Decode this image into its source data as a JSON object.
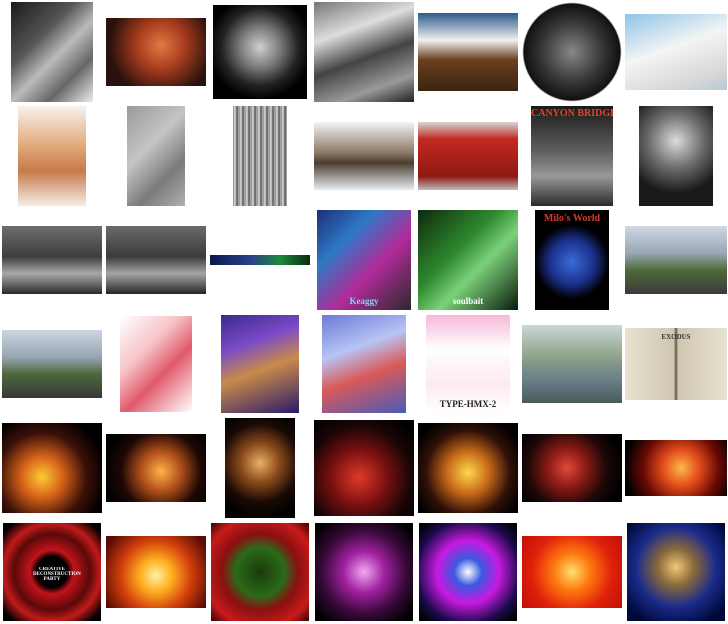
{
  "gallery": {
    "rows": [
      {
        "items": [
          {
            "name": "thumb-chest-xray",
            "w": 82,
            "h": 100,
            "bg": "linear-gradient(135deg,#1a1a1a 0%,#555 35%,#bbb 55%,#666 75%,#eee 100%)",
            "caption": "",
            "capColor": "#222"
          },
          {
            "name": "thumb-painted-face",
            "w": 100,
            "h": 68,
            "bg": "radial-gradient(circle at 55% 40%,#e07a45 0%,#a83c1e 35%,#2a120c 75%)",
            "caption": "",
            "capColor": "#fff"
          },
          {
            "name": "thumb-ct-scan",
            "w": 94,
            "h": 94,
            "bg": "radial-gradient(circle at 50% 45%,#cfcfcf 0%,#777 30%,#222 55%,#000 75%)",
            "caption": "",
            "capColor": "#fff"
          },
          {
            "name": "thumb-weather-satellite",
            "w": 100,
            "h": 100,
            "bg": "linear-gradient(160deg,#777 0%,#ddd 30%,#444 55%,#999 80%,#222 100%)",
            "caption": "",
            "capColor": "#fff"
          },
          {
            "name": "thumb-bald-eagle",
            "w": 100,
            "h": 78,
            "bg": "linear-gradient(180deg,#2d5b8a 0%,#f0f0f0 35%,#6b3f1f 60%,#3a2410 100%)",
            "caption": "",
            "capColor": "#fff"
          },
          {
            "name": "thumb-globe-satellite",
            "w": 100,
            "h": 100,
            "bg": "radial-gradient(circle,#888 0%,#333 45%,#111 68%,#ffffff 70%)",
            "caption": "",
            "capColor": "#fff"
          },
          {
            "name": "thumb-arctic-foxes",
            "w": 102,
            "h": 76,
            "bg": "linear-gradient(160deg,#8fc4e8 0%,#f4f4f4 45%,#d8d8d8 80%,#b7c9d6 100%)",
            "caption": "",
            "capColor": "#fff"
          }
        ]
      },
      {
        "items": [
          {
            "name": "thumb-holding-hands",
            "w": 68,
            "h": 100,
            "bg": "linear-gradient(180deg,#f6f2ec 0%,#e2a879 40%,#c67a4c 65%,#f4eee6 100%)",
            "caption": "",
            "capColor": "#fff"
          },
          {
            "name": "thumb-aircraft-grayscale",
            "w": 58,
            "h": 100,
            "bg": "linear-gradient(135deg,#9a9a9a 0%,#c4c4c4 40%,#7a7a7a 70%,#b0b0b0 100%)",
            "caption": "",
            "capColor": "#fff"
          },
          {
            "name": "thumb-autostereogram",
            "w": 54,
            "h": 100,
            "bg": "repeating-linear-gradient(90deg,#888 0px,#ddd 2px,#555 4px,#bbb 6px)",
            "caption": "",
            "capColor": "#fff"
          },
          {
            "name": "thumb-wolf-snow",
            "w": 100,
            "h": 68,
            "bg": "linear-gradient(180deg,#f2f4f8 0%,#8c7a66 45%,#4a3d30 60%,#e8ecf0 100%)",
            "caption": "",
            "capColor": "#fff"
          },
          {
            "name": "thumb-red-container",
            "w": 100,
            "h": 68,
            "bg": "linear-gradient(180deg,#d6d6d6 0%,#c22a22 25%,#8e1812 80%,#bdbdbd 100%)",
            "caption": "",
            "capColor": "#fff"
          },
          {
            "name": "thumb-canyon-bridge",
            "w": 82,
            "h": 100,
            "bg": "linear-gradient(180deg,#1a1a1a 0%,#5e5e5e 45%,#999 70%,#2b2b2b 100%)",
            "caption": "CANYON BRIDGE",
            "capColor": "#e8431e"
          },
          {
            "name": "thumb-graduate-portrait",
            "w": 74,
            "h": 100,
            "bg": "radial-gradient(circle at 50% 35%,#dcdcdc 0%,#707070 35%,#1a1a1a 70%)",
            "caption": "",
            "capColor": "#fff"
          }
        ]
      },
      {
        "items": [
          {
            "name": "thumb-studio-man-1",
            "w": 100,
            "h": 68,
            "bg": "linear-gradient(180deg,#6d6d6d 0%,#3e3e3e 45%,#a9a9a9 70%,#2a2a2a 100%)",
            "caption": "",
            "capColor": "#fff"
          },
          {
            "name": "thumb-studio-man-2",
            "w": 100,
            "h": 68,
            "bg": "linear-gradient(180deg,#6a6a6a 0%,#3b3b3b 45%,#a5a5a5 70%,#262626 100%)",
            "caption": "",
            "capColor": "#fff"
          },
          {
            "name": "thumb-banner-strip",
            "w": 100,
            "h": 10,
            "bg": "linear-gradient(90deg,#0a1a4a 0%,#2b3f8a 40%,#1b8a3a 70%,#0b2b12 100%)",
            "caption": "",
            "capColor": "#fff"
          },
          {
            "name": "thumb-keaggy-robot",
            "w": 94,
            "h": 100,
            "bg": "linear-gradient(135deg,#1d2f7a 0%,#2f78c4 30%,#b22a9a 60%,#2a2a2a 100%)",
            "caption": "Keaggy",
            "capColor": "#7dd4ff"
          },
          {
            "name": "thumb-soulbait-hands",
            "w": 100,
            "h": 100,
            "bg": "linear-gradient(135deg,#0d2a0d 0%,#2f8a2f 40%,#7ad17a 60%,#0a1a0a 100%)",
            "caption": "soulbait",
            "capColor": "#ffffff"
          },
          {
            "name": "thumb-milos-world",
            "w": 74,
            "h": 100,
            "bg": "radial-gradient(circle at 50% 52%,#3a6cd8 0%,#1a2f8a 35%,#000 58%)",
            "caption": "Milo's World",
            "capColor": "#d23a2a"
          },
          {
            "name": "thumb-street-bridge-1",
            "w": 102,
            "h": 68,
            "bg": "linear-gradient(180deg,#cfd8e4 0%,#9aa6b4 40%,#4e6a3a 65%,#3a3a3a 100%)",
            "caption": "",
            "capColor": "#fff"
          }
        ]
      },
      {
        "items": [
          {
            "name": "thumb-street-bridge-2",
            "w": 100,
            "h": 68,
            "bg": "linear-gradient(180deg,#ccd6e2 0%,#98a4b2 40%,#4c683a 65%,#383838 100%)",
            "caption": "",
            "capColor": "#fff"
          },
          {
            "name": "thumb-anime-girl-bunny",
            "w": 72,
            "h": 96,
            "bg": "linear-gradient(135deg,#ffffff 0%,#f6c4c8 35%,#e05a6a 60%,#ffffff 100%)",
            "caption": "",
            "capColor": "#fff"
          },
          {
            "name": "thumb-anime-christmas",
            "w": 78,
            "h": 98,
            "bg": "linear-gradient(160deg,#3a2a8a 0%,#7a4ac8 30%,#c98a4a 55%,#2a1a6a 100%)",
            "caption": "",
            "capColor": "#fff"
          },
          {
            "name": "thumb-anime-flying",
            "w": 84,
            "h": 98,
            "bg": "linear-gradient(160deg,#6a7ad8 0%,#b8c4f4 35%,#d85a5a 60%,#4a5ab8 100%)",
            "caption": "",
            "capColor": "#fff"
          },
          {
            "name": "thumb-type-hmx2",
            "w": 84,
            "h": 98,
            "bg": "linear-gradient(180deg,#f7b8d8 0%,#ffffff 35%,#fde9f2 70%,#ffffff 100%)",
            "caption": "TYPE-HMX-2",
            "capColor": "#222"
          },
          {
            "name": "thumb-impressionist-street",
            "w": 100,
            "h": 78,
            "bg": "linear-gradient(180deg,#c9d6d8 0%,#8fa48a 40%,#6a7f8a 70%,#4a5a5a 100%)",
            "caption": "",
            "capColor": "#fff"
          },
          {
            "name": "thumb-exodus-book",
            "w": 102,
            "h": 72,
            "bg": "linear-gradient(90deg,#e8e2d2 0%,#cfc6b0 48%,#5a5042 50%,#cfc6b0 52%,#e8e2d2 100%)",
            "caption": "EXODUS",
            "capColor": "#333"
          }
        ]
      },
      {
        "items": [
          {
            "name": "thumb-concert-flames-1",
            "w": 100,
            "h": 90,
            "bg": "radial-gradient(circle at 40% 60%,#ffcc33 0%,#d8641a 25%,#3a1008 55%,#000 80%)",
            "caption": "",
            "capColor": "#fff"
          },
          {
            "name": "thumb-concert-guitarist-1",
            "w": 100,
            "h": 68,
            "bg": "radial-gradient(circle at 55% 55%,#ffb347 0%,#b0501a 30%,#200805 60%,#000 85%)",
            "caption": "",
            "capColor": "#fff"
          },
          {
            "name": "thumb-concert-guitarist-2",
            "w": 70,
            "h": 100,
            "bg": "radial-gradient(circle at 50% 45%,#e8b06a 0%,#8a4a1a 30%,#1a0a05 60%,#000 85%)",
            "caption": "",
            "capColor": "#fff"
          },
          {
            "name": "thumb-concert-keyboard",
            "w": 100,
            "h": 96,
            "bg": "radial-gradient(circle at 45% 60%,#e03a2a 0%,#7a1010 35%,#1a0505 65%,#000 90%)",
            "caption": "",
            "capColor": "#fff"
          },
          {
            "name": "thumb-concert-lights",
            "w": 100,
            "h": 90,
            "bg": "radial-gradient(circle at 50% 55%,#ffd84a 0%,#c86a1a 30%,#301008 60%,#000 85%)",
            "caption": "",
            "capColor": "#fff"
          },
          {
            "name": "thumb-concert-drummer",
            "w": 100,
            "h": 68,
            "bg": "radial-gradient(circle at 45% 50%,#e04a3a 0%,#8a1a14 30%,#200808 60%,#000 85%)",
            "caption": "",
            "capColor": "#fff"
          },
          {
            "name": "thumb-sparks-red",
            "w": 102,
            "h": 56,
            "bg": "radial-gradient(circle at 55% 50%,#ffb84a 0%,#e04a1a 30%,#6a0a05 60%,#000 90%)",
            "caption": "",
            "capColor": "#fff"
          }
        ]
      },
      {
        "items": [
          {
            "name": "thumb-creative-party-swirl",
            "w": 98,
            "h": 98,
            "bg": "radial-gradient(circle,#000 0%,#000 22%,#c2121a 32%,#5a0a0a 55%,#c21a1a 70%,#000 90%)",
            "caption": "CREATIVE DECONSTRUCTION PARTY",
            "capColor": "#ffffff"
          },
          {
            "name": "thumb-fire-flames",
            "w": 100,
            "h": 72,
            "bg": "radial-gradient(circle at 50% 55%,#fff2a8 0%,#ffb020 25%,#d2400c 55%,#5a0a05 90%)",
            "caption": "",
            "capColor": "#fff"
          },
          {
            "name": "thumb-red-green-frame",
            "w": 98,
            "h": 98,
            "bg": "radial-gradient(circle,#1a3a0a 0%,#2a6a1a 35%,#8a1010 55%,#c81a1a 80%,#3a0505 100%)",
            "caption": "",
            "capColor": "#fff"
          },
          {
            "name": "thumb-magenta-fractal",
            "w": 98,
            "h": 98,
            "bg": "radial-gradient(circle,#f0a8f0 0%,#a020a0 30%,#3a0a3a 60%,#000 90%)",
            "caption": "",
            "capColor": "#fff"
          },
          {
            "name": "thumb-purple-splash",
            "w": 98,
            "h": 98,
            "bg": "radial-gradient(circle at 50% 50%,#ffffff 0%,#3a5ae0 20%,#c81ae0 45%,#1a0a4a 75%,#000 95%)",
            "caption": "",
            "capColor": "#fff"
          },
          {
            "name": "thumb-orange-glow",
            "w": 100,
            "h": 72,
            "bg": "radial-gradient(circle,#ffe070 0%,#ff7a10 30%,#e0200a 65%,#c0100a 100%)",
            "caption": "",
            "capColor": "#fff"
          },
          {
            "name": "thumb-blue-face-swirl",
            "w": 98,
            "h": 98,
            "bg": "radial-gradient(circle at 50% 45%,#f0c878 0%,#8a6a3a 25%,#1a2a8a 55%,#000a3a 85%)",
            "caption": "",
            "capColor": "#fff"
          }
        ]
      }
    ]
  }
}
